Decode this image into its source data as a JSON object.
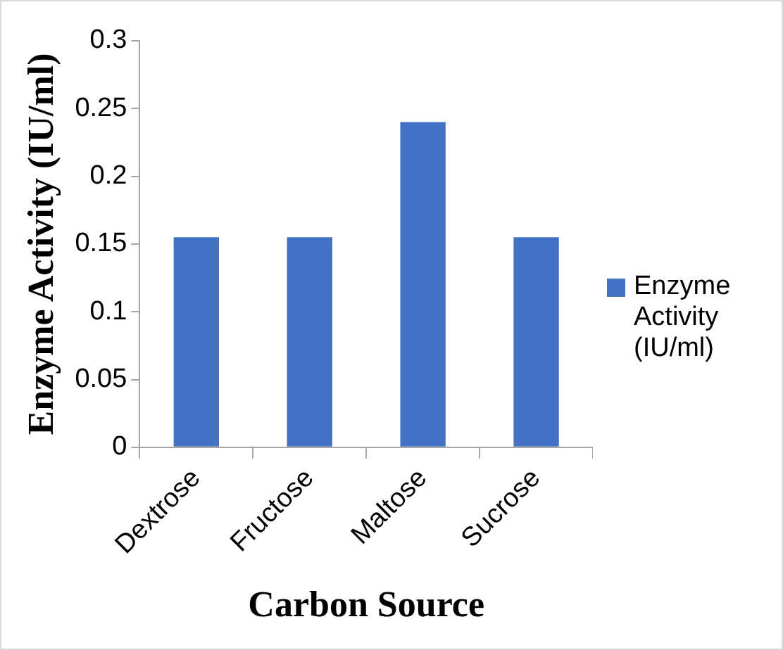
{
  "chart_data": {
    "type": "bar",
    "xlabel": "Carbon Source",
    "ylabel": "Enzyme Activity (IU/ml)",
    "categories": [
      "Dextrose",
      "Fructose",
      "Maltose",
      "Sucrose"
    ],
    "series": [
      {
        "name": "Enzyme Activity (IU/ml)",
        "color": "#4472c4",
        "values": [
          0.155,
          0.155,
          0.24,
          0.155
        ]
      }
    ],
    "ylim": [
      0,
      0.3
    ],
    "yticks": [
      0,
      0.05,
      0.1,
      0.15,
      0.2,
      0.25,
      0.3
    ],
    "grid": false,
    "legend": "right"
  }
}
